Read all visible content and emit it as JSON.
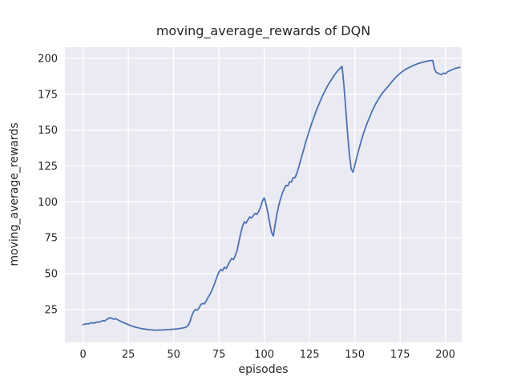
{
  "figure": {
    "title": "moving_average_rewards of DQN",
    "background_color": "#ffffff",
    "axes_background_color": "#eaeaf2",
    "grid_color": "#ffffff",
    "text_color": "#262626",
    "line_color": "#4c72b0"
  },
  "chart_data": {
    "type": "line",
    "title": "moving_average_rewards of DQN",
    "xlabel": "episodes",
    "ylabel": "moving_average_rewards",
    "xticks": [
      0,
      25,
      50,
      75,
      100,
      125,
      150,
      175,
      200
    ],
    "yticks": [
      25,
      50,
      75,
      100,
      125,
      150,
      175,
      200
    ],
    "xlim": [
      -10,
      209
    ],
    "ylim": [
      2.1,
      207.8
    ],
    "grid": true,
    "legend_position": "none",
    "series": [
      {
        "name": "moving_average_rewards",
        "x_start": 0,
        "x_step": 1,
        "values": [
          14.5,
          14.8,
          15.1,
          15.0,
          15.4,
          15.8,
          15.5,
          15.9,
          16.4,
          16.1,
          16.8,
          17.3,
          17.0,
          18.0,
          18.9,
          19.3,
          18.7,
          18.3,
          18.6,
          18.0,
          17.3,
          16.7,
          16.1,
          15.6,
          15.0,
          14.5,
          14.0,
          13.5,
          13.1,
          12.7,
          12.4,
          12.1,
          11.8,
          11.6,
          11.4,
          11.2,
          11.0,
          10.9,
          10.8,
          10.7,
          10.6,
          10.6,
          10.7,
          10.7,
          10.8,
          10.9,
          10.9,
          11.0,
          11.1,
          11.2,
          11.3,
          11.4,
          11.5,
          11.7,
          11.9,
          12.1,
          12.4,
          12.8,
          13.8,
          16.5,
          20.5,
          23.5,
          25.0,
          24.6,
          26.0,
          28.5,
          29.2,
          29.0,
          31.0,
          33.5,
          35.5,
          38.0,
          41.0,
          44.5,
          48.0,
          51.0,
          53.0,
          52.0,
          54.5,
          53.5,
          56.0,
          58.5,
          60.5,
          59.8,
          62.5,
          66.0,
          72.0,
          78.0,
          83.0,
          86.0,
          85.2,
          87.5,
          89.5,
          88.8,
          90.5,
          92.0,
          91.3,
          93.5,
          96.5,
          100.5,
          102.8,
          98.5,
          92.5,
          85.5,
          79.0,
          76.2,
          84.0,
          91.5,
          97.5,
          102.0,
          106.0,
          109.0,
          111.5,
          111.2,
          114.0,
          113.8,
          117.0,
          116.8,
          120.0,
          124.0,
          128.5,
          133.0,
          137.5,
          142.0,
          146.0,
          150.0,
          154.0,
          157.5,
          161.0,
          164.5,
          167.5,
          170.5,
          173.5,
          176.0,
          178.5,
          181.0,
          183.0,
          185.0,
          187.0,
          188.8,
          190.5,
          192.0,
          193.2,
          194.4,
          181.0,
          165.0,
          148.0,
          133.0,
          123.0,
          120.7,
          125.5,
          130.5,
          135.5,
          140.0,
          144.5,
          148.5,
          152.0,
          155.5,
          158.5,
          161.5,
          164.5,
          167.0,
          169.5,
          171.5,
          173.5,
          175.5,
          177.0,
          178.5,
          180.0,
          181.5,
          183.0,
          184.5,
          186.0,
          187.3,
          188.5,
          189.6,
          190.6,
          191.5,
          192.3,
          193.0,
          193.7,
          194.3,
          194.9,
          195.4,
          195.9,
          196.4,
          196.8,
          197.2,
          197.5,
          197.8,
          198.1,
          198.3,
          198.5,
          198.6,
          192.5,
          190.3,
          189.5,
          189.0,
          188.8,
          189.8,
          189.3,
          190.5,
          191.2,
          191.8,
          192.3,
          192.8,
          193.2,
          193.5,
          193.8
        ]
      }
    ]
  }
}
